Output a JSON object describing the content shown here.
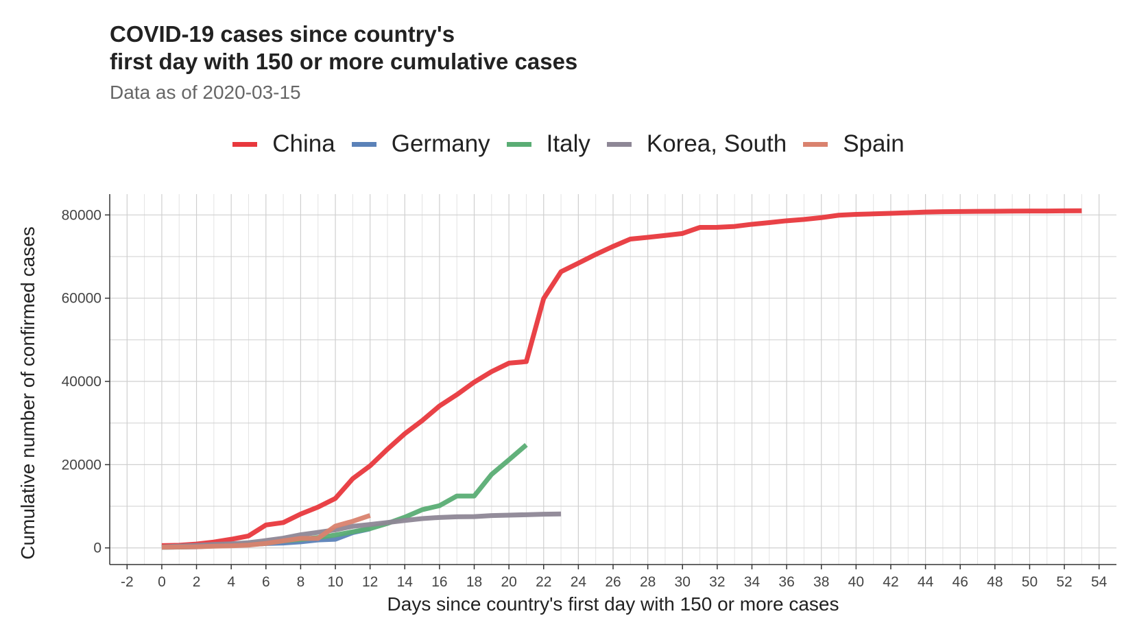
{
  "chart_data": {
    "type": "line",
    "title_lines": [
      "COVID-19 cases since country's",
      "first day with 150 or more cumulative cases"
    ],
    "subtitle": "Data as of 2020-03-15",
    "xlabel": "Days since country's first day with 150 or more cases",
    "ylabel": "Cumulative number of confirmed cases",
    "xlim": [
      -3,
      55
    ],
    "ylim": [
      -4000,
      85000
    ],
    "x_ticks": [
      -2,
      0,
      2,
      4,
      6,
      8,
      10,
      12,
      14,
      16,
      18,
      20,
      22,
      24,
      26,
      28,
      30,
      32,
      34,
      36,
      38,
      40,
      42,
      44,
      46,
      48,
      50,
      52,
      54
    ],
    "y_ticks": [
      0,
      20000,
      40000,
      60000,
      80000
    ],
    "y_tick_labels": [
      "0",
      "20000",
      "40000",
      "60000",
      "80000"
    ],
    "grid": true,
    "legend_position": "top",
    "series": [
      {
        "name": "China",
        "color": "#e8383d",
        "x": [
          0,
          1,
          2,
          3,
          4,
          5,
          6,
          7,
          8,
          9,
          10,
          11,
          12,
          13,
          14,
          15,
          16,
          17,
          18,
          19,
          20,
          21,
          22,
          23,
          24,
          25,
          26,
          27,
          28,
          29,
          30,
          31,
          32,
          33,
          34,
          35,
          36,
          37,
          38,
          39,
          40,
          41,
          42,
          43,
          44,
          45,
          46,
          47,
          48,
          49,
          50,
          51,
          52,
          53
        ],
        "y": [
          548,
          643,
          920,
          1406,
          2075,
          2877,
          5509,
          6087,
          8141,
          9802,
          11891,
          16630,
          19716,
          23707,
          27440,
          30587,
          34110,
          36814,
          39829,
          42354,
          44386,
          44759,
          59895,
          66358,
          68413,
          70513,
          72434,
          74211,
          74619,
          75077,
          75550,
          77001,
          77022,
          77241,
          77754,
          78166,
          78600,
          78928,
          79356,
          79932,
          80136,
          80261,
          80386,
          80537,
          80690,
          80770,
          80823,
          80860,
          80887,
          80921,
          80932,
          80945,
          80977,
          81003
        ]
      },
      {
        "name": "Germany",
        "color": "#5b82b8",
        "x": [
          0,
          1,
          2,
          3,
          4,
          5,
          6,
          7,
          8,
          9,
          10,
          11,
          12
        ],
        "y": [
          159,
          196,
          262,
          482,
          670,
          799,
          1040,
          1176,
          1457,
          1908,
          2078,
          3675,
          4585
        ]
      },
      {
        "name": "Italy",
        "color": "#5aad74",
        "x": [
          0,
          1,
          2,
          3,
          4,
          5,
          6,
          7,
          8,
          9,
          10,
          11,
          12,
          13,
          14,
          15,
          16,
          17,
          18,
          19,
          20,
          21
        ],
        "y": [
          155,
          229,
          322,
          453,
          655,
          888,
          1128,
          1694,
          2036,
          2502,
          3089,
          3858,
          4636,
          5883,
          7375,
          9172,
          10149,
          12462,
          12462,
          17660,
          21157,
          24747
        ]
      },
      {
        "name": "Korea, South",
        "color": "#8e8796",
        "x": [
          0,
          1,
          2,
          3,
          4,
          5,
          6,
          7,
          8,
          9,
          10,
          11,
          12,
          13,
          14,
          15,
          16,
          17,
          18,
          19,
          20,
          21,
          22,
          23
        ],
        "y": [
          204,
          433,
          602,
          833,
          977,
          1261,
          1766,
          2337,
          3150,
          3736,
          4335,
          5186,
          5621,
          6088,
          6593,
          7041,
          7314,
          7478,
          7513,
          7755,
          7869,
          7979,
          8086,
          8162
        ]
      },
      {
        "name": "Spain",
        "color": "#d9826e",
        "x": [
          0,
          1,
          2,
          3,
          4,
          5,
          6,
          7,
          8,
          9,
          10,
          11,
          12
        ],
        "y": [
          165,
          222,
          259,
          400,
          500,
          673,
          1073,
          1695,
          2277,
          2277,
          5232,
          6391,
          7798
        ]
      }
    ]
  }
}
